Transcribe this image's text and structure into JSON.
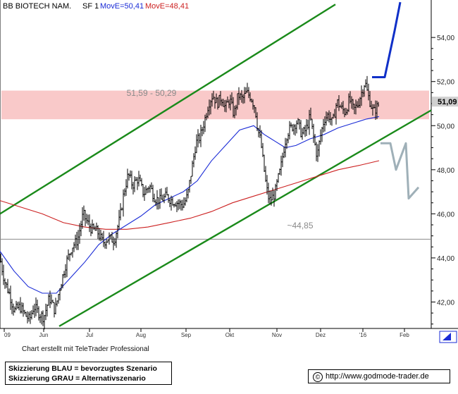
{
  "header": {
    "title": "BB BIOTECH NAM.",
    "sf": "SF 1",
    "ma1": "MovE=50,41",
    "ma2": "MovE=48,41"
  },
  "colors": {
    "channel": "#1a8a1a",
    "ma_fast": "#1a2bd6",
    "ma_slow": "#cc2020",
    "zone": "#f9c9c9",
    "scenario_blue": "#1030c8",
    "scenario_gray": "#9fb0b8",
    "price_bars": "#000000",
    "last_price_box": "#d0d0d0"
  },
  "y_axis": {
    "ticks": [
      "54,00",
      "52,00",
      "50,00",
      "48,00",
      "46,00",
      "44,00",
      "42,00"
    ],
    "last_price": "51,09"
  },
  "x_axis": {
    "ticks": [
      "09",
      "Jun",
      "Jul",
      "Aug",
      "Sep",
      "Okt",
      "Nov",
      "Dez",
      "'16",
      "Feb"
    ]
  },
  "annotations": {
    "zone_label": "51,59 - 50,29",
    "support_label": "~44,85"
  },
  "footer": {
    "credit": "Chart erstellt mit TeleTrader Professional",
    "legend_blue": "Skizzierung BLAU = bevorzugtes Szenario",
    "legend_gray": "Skizzierung GRAU = Alternativszenario",
    "copyright_symbol": "©",
    "url": "http://www.godmode-trader.de"
  },
  "chart_data": {
    "type": "line",
    "title": "BB BIOTECH NAM.",
    "ylim": [
      40.8,
      55.7
    ],
    "grid": false,
    "resistance_zone": [
      50.29,
      51.59
    ],
    "support_level": 44.85,
    "price_path": [
      [
        0,
        44.0
      ],
      [
        6,
        43.0
      ],
      [
        14,
        42.3
      ],
      [
        20,
        41.6
      ],
      [
        28,
        41.8
      ],
      [
        36,
        41.4
      ],
      [
        42,
        41.2
      ],
      [
        48,
        41.8
      ],
      [
        55,
        41.5
      ],
      [
        62,
        41.3
      ],
      [
        70,
        42.2
      ],
      [
        78,
        41.6
      ],
      [
        86,
        42.8
      ],
      [
        94,
        43.8
      ],
      [
        102,
        44.5
      ],
      [
        110,
        44.8
      ],
      [
        118,
        46.0
      ],
      [
        124,
        45.6
      ],
      [
        130,
        45.3
      ],
      [
        138,
        45.2
      ],
      [
        146,
        44.7
      ],
      [
        154,
        44.9
      ],
      [
        162,
        44.8
      ],
      [
        170,
        45.8
      ],
      [
        176,
        47.0
      ],
      [
        182,
        47.8
      ],
      [
        188,
        47.3
      ],
      [
        196,
        47.6
      ],
      [
        204,
        46.9
      ],
      [
        212,
        47.3
      ],
      [
        220,
        46.7
      ],
      [
        228,
        46.6
      ],
      [
        236,
        46.8
      ],
      [
        244,
        46.6
      ],
      [
        252,
        46.5
      ],
      [
        260,
        46.4
      ],
      [
        266,
        46.8
      ],
      [
        272,
        48.0
      ],
      [
        278,
        49.2
      ],
      [
        284,
        49.5
      ],
      [
        290,
        50.2
      ],
      [
        296,
        51.0
      ],
      [
        302,
        51.4
      ],
      [
        308,
        51.0
      ],
      [
        314,
        51.3
      ],
      [
        320,
        50.8
      ],
      [
        326,
        51.2
      ],
      [
        332,
        50.5
      ],
      [
        338,
        51.4
      ],
      [
        344,
        51.2
      ],
      [
        350,
        51.5
      ],
      [
        356,
        51.3
      ],
      [
        362,
        50.8
      ],
      [
        366,
        49.8
      ],
      [
        370,
        49.3
      ],
      [
        374,
        48.2
      ],
      [
        378,
        47.2
      ],
      [
        382,
        46.6
      ],
      [
        386,
        46.7
      ],
      [
        390,
        46.9
      ],
      [
        394,
        47.5
      ],
      [
        398,
        48.0
      ],
      [
        402,
        48.8
      ],
      [
        406,
        49.5
      ],
      [
        410,
        49.8
      ],
      [
        416,
        50.0
      ],
      [
        422,
        50.2
      ],
      [
        428,
        49.6
      ],
      [
        434,
        49.8
      ],
      [
        440,
        50.4
      ],
      [
        446,
        49.3
      ],
      [
        450,
        48.6
      ],
      [
        454,
        49.4
      ],
      [
        460,
        50.3
      ],
      [
        466,
        50.5
      ],
      [
        472,
        50.1
      ],
      [
        478,
        51.1
      ],
      [
        484,
        50.8
      ],
      [
        490,
        50.6
      ],
      [
        496,
        51.2
      ],
      [
        502,
        50.7
      ],
      [
        508,
        51.0
      ],
      [
        514,
        51.6
      ],
      [
        518,
        52.0
      ],
      [
        522,
        51.4
      ],
      [
        526,
        51.0
      ],
      [
        530,
        50.6
      ],
      [
        534,
        50.8
      ],
      [
        538,
        51.0
      ]
    ],
    "series": [
      {
        "name": "MovE=50,41",
        "values": [
          [
            0,
            44.3
          ],
          [
            20,
            43.4
          ],
          [
            40,
            42.7
          ],
          [
            60,
            42.4
          ],
          [
            80,
            42.4
          ],
          [
            100,
            43.1
          ],
          [
            120,
            43.8
          ],
          [
            140,
            44.6
          ],
          [
            160,
            45.1
          ],
          [
            180,
            45.5
          ],
          [
            200,
            45.9
          ],
          [
            220,
            46.4
          ],
          [
            240,
            46.7
          ],
          [
            260,
            47.0
          ],
          [
            280,
            47.5
          ],
          [
            300,
            48.4
          ],
          [
            320,
            49.1
          ],
          [
            340,
            49.8
          ],
          [
            360,
            50.0
          ],
          [
            375,
            49.6
          ],
          [
            390,
            49.3
          ],
          [
            405,
            49.0
          ],
          [
            420,
            49.1
          ],
          [
            440,
            49.4
          ],
          [
            460,
            49.6
          ],
          [
            480,
            49.9
          ],
          [
            500,
            50.1
          ],
          [
            520,
            50.3
          ],
          [
            538,
            50.41
          ]
        ]
      },
      {
        "name": "MovE=48,41",
        "values": [
          [
            0,
            46.6
          ],
          [
            30,
            46.3
          ],
          [
            60,
            46.0
          ],
          [
            90,
            45.6
          ],
          [
            120,
            45.4
          ],
          [
            150,
            45.3
          ],
          [
            180,
            45.3
          ],
          [
            210,
            45.4
          ],
          [
            240,
            45.6
          ],
          [
            270,
            45.8
          ],
          [
            300,
            46.1
          ],
          [
            330,
            46.5
          ],
          [
            360,
            46.8
          ],
          [
            390,
            47.1
          ],
          [
            420,
            47.4
          ],
          [
            450,
            47.7
          ],
          [
            480,
            48.0
          ],
          [
            510,
            48.2
          ],
          [
            538,
            48.41
          ]
        ]
      }
    ],
    "channel": {
      "upper": [
        [
          0,
          46.0
        ],
        [
          476,
          55.5
        ]
      ],
      "lower": [
        [
          84,
          40.9
        ],
        [
          612,
          50.7
        ]
      ]
    },
    "scenario_blue": [
      [
        528,
        52.2
      ],
      [
        546,
        52.2
      ],
      [
        560,
        54.3
      ],
      [
        568,
        55.6
      ]
    ],
    "scenario_gray": [
      [
        540,
        49.2
      ],
      [
        554,
        49.2
      ],
      [
        562,
        48.0
      ],
      [
        576,
        49.2
      ],
      [
        580,
        46.7
      ],
      [
        594,
        47.2
      ]
    ]
  }
}
